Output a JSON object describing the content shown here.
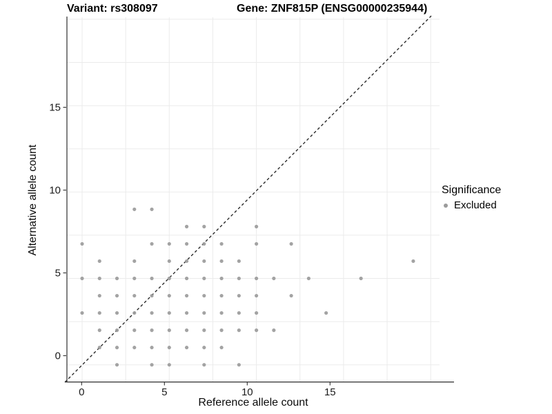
{
  "header": {
    "variant_title": "Variant: rs308097",
    "gene_title": "Gene: ZNF815P (ENSG00000235944)"
  },
  "chart_data": {
    "type": "scatter",
    "title_left": "Variant: rs308097",
    "title_right": "Gene: ZNF815P (ENSG00000235944)",
    "xlabel": "Reference allele count",
    "ylabel": "Alternative allele count",
    "x_ticks": [
      0,
      5,
      10,
      15
    ],
    "y_ticks": [
      0,
      5,
      10,
      15
    ],
    "xlim": [
      -1,
      20.5
    ],
    "ylim": [
      -1,
      21
    ],
    "grid": "on",
    "grid_interval_major": 5,
    "grid_interval_minor": 2.5,
    "grid_color": "#ebebeb",
    "axis_line_color": "#2e2e2e",
    "tick_label_color": "#1a1a1a",
    "point_color": "#9b9b9b",
    "identity_line": {
      "style": "dashed",
      "slope": 1,
      "intercept": 0,
      "color": "#1a1a1a"
    },
    "legend": {
      "position": "right",
      "title": "Significance",
      "entries": [
        {
          "label": "Excluded",
          "color": "#9b9b9b",
          "marker": "circle"
        }
      ]
    },
    "series": [
      {
        "name": "Excluded",
        "points": [
          [
            3,
            9
          ],
          [
            4,
            9
          ],
          [
            6,
            8
          ],
          [
            7,
            8
          ],
          [
            10,
            8
          ],
          [
            0,
            7
          ],
          [
            4,
            7
          ],
          [
            5,
            7
          ],
          [
            6,
            7
          ],
          [
            7,
            7
          ],
          [
            8,
            7
          ],
          [
            10,
            7
          ],
          [
            12,
            7
          ],
          [
            1,
            6
          ],
          [
            3,
            6
          ],
          [
            5,
            6
          ],
          [
            6,
            6
          ],
          [
            7,
            6
          ],
          [
            8,
            6
          ],
          [
            9,
            6
          ],
          [
            19,
            6
          ],
          [
            0,
            5
          ],
          [
            1,
            5
          ],
          [
            2,
            5
          ],
          [
            3,
            5
          ],
          [
            4,
            5
          ],
          [
            5,
            5
          ],
          [
            6,
            5
          ],
          [
            7,
            5
          ],
          [
            8,
            5
          ],
          [
            9,
            5
          ],
          [
            10,
            5
          ],
          [
            11,
            5
          ],
          [
            13,
            5
          ],
          [
            16,
            5
          ],
          [
            1,
            4
          ],
          [
            2,
            4
          ],
          [
            3,
            4
          ],
          [
            4,
            4
          ],
          [
            5,
            4
          ],
          [
            6,
            4
          ],
          [
            7,
            4
          ],
          [
            8,
            4
          ],
          [
            9,
            4
          ],
          [
            10,
            4
          ],
          [
            12,
            4
          ],
          [
            0,
            3
          ],
          [
            1,
            3
          ],
          [
            2,
            3
          ],
          [
            3,
            3
          ],
          [
            4,
            3
          ],
          [
            5,
            3
          ],
          [
            6,
            3
          ],
          [
            7,
            3
          ],
          [
            8,
            3
          ],
          [
            9,
            3
          ],
          [
            10,
            3
          ],
          [
            14,
            3
          ],
          [
            1,
            2
          ],
          [
            2,
            2
          ],
          [
            3,
            2
          ],
          [
            4,
            2
          ],
          [
            5,
            2
          ],
          [
            6,
            2
          ],
          [
            7,
            2
          ],
          [
            8,
            2
          ],
          [
            9,
            2
          ],
          [
            10,
            2
          ],
          [
            11,
            2
          ],
          [
            1,
            1
          ],
          [
            2,
            1
          ],
          [
            3,
            1
          ],
          [
            4,
            1
          ],
          [
            5,
            1
          ],
          [
            6,
            1
          ],
          [
            7,
            1
          ],
          [
            8,
            1
          ],
          [
            2,
            0
          ],
          [
            4,
            0
          ],
          [
            5,
            0
          ],
          [
            7,
            0
          ],
          [
            9,
            0
          ]
        ]
      }
    ]
  }
}
